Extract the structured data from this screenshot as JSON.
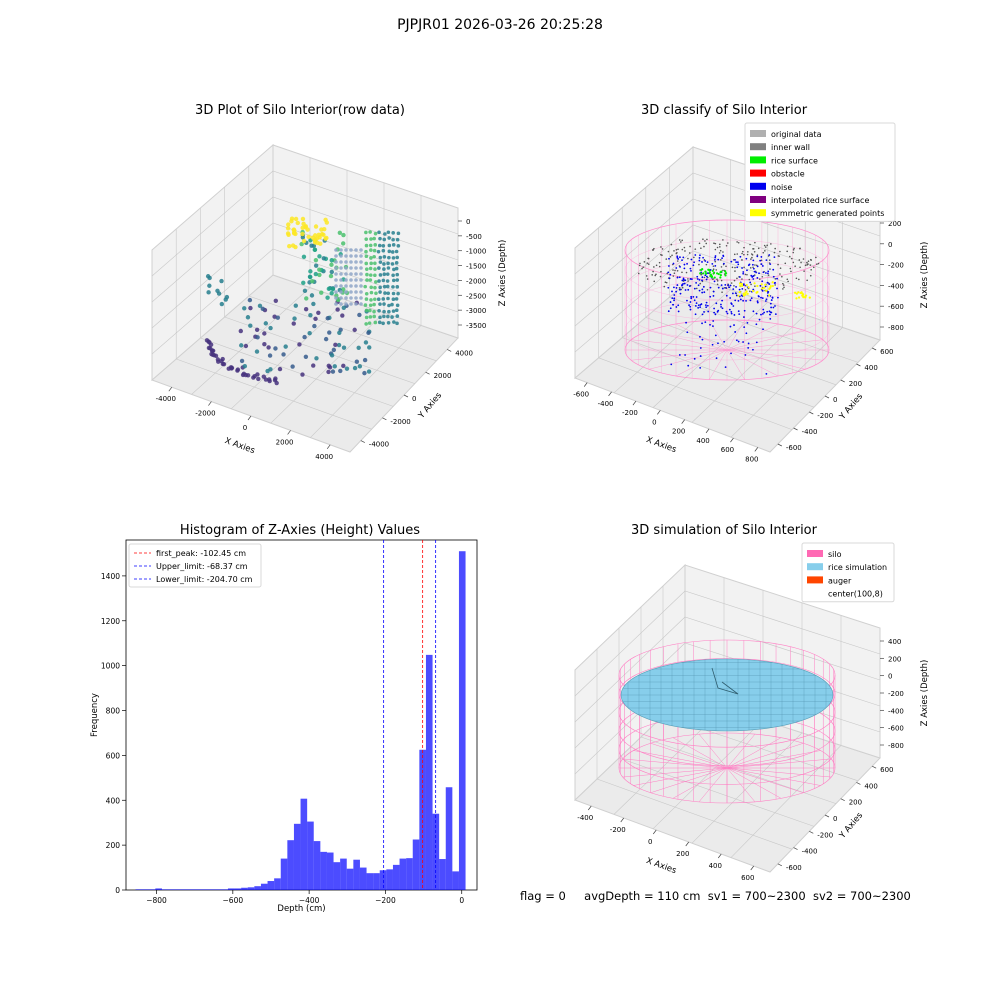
{
  "suptitle": "PJPJR01 2026-03-26 20:25:28",
  "footer": {
    "flag": "flag = 0",
    "avg": "avgDepth = 110 cm",
    "sv1": "sv1 = 700~2300",
    "sv2": "sv2 = 700~2300"
  },
  "chart_data": [
    {
      "type": "scatter",
      "title": "3D Plot of Silo Interior(row data)",
      "xlabel": "X Axies",
      "ylabel": "Y Axies",
      "zlabel": "Z Axies (Depth)",
      "x_ticks": [
        "-4000",
        "-2000",
        "0",
        "2000",
        "4000"
      ],
      "y_ticks": [
        "-4000",
        "-2000",
        "0",
        "2000",
        "4000"
      ],
      "z_ticks": [
        "0",
        "-500",
        "-1000",
        "-1500",
        "-2000",
        "-2500",
        "-3000",
        "-3500"
      ],
      "colormap": "viridis"
    },
    {
      "type": "scatter",
      "title": "3D classify of Silo Interior",
      "xlabel": "X Axies",
      "ylabel": "Y Axies",
      "zlabel": "Z Axies (Depth)",
      "x_ticks": [
        "-600",
        "-400",
        "-200",
        "0",
        "200",
        "400",
        "600",
        "800"
      ],
      "y_ticks": [
        "-600",
        "-400",
        "-200",
        "0",
        "200",
        "400",
        "600"
      ],
      "z_ticks": [
        "200",
        "0",
        "-200",
        "-400",
        "-600",
        "-800"
      ],
      "legend": [
        {
          "label": "original data",
          "color": "#b0b0b0"
        },
        {
          "label": "inner wall",
          "color": "#808080"
        },
        {
          "label": "rice surface",
          "color": "#00ee00"
        },
        {
          "label": "obstacle",
          "color": "#ff0000"
        },
        {
          "label": "noise",
          "color": "#0000ee"
        },
        {
          "label": "interpolated rice surface",
          "color": "#800080"
        },
        {
          "label": "symmetric generated points",
          "color": "#ffff00"
        }
      ],
      "legend_position": "top-right"
    },
    {
      "type": "bar",
      "title": "Histogram of Z-Axies (Height) Values",
      "xlabel": "Depth (cm)",
      "ylabel": "Frequency",
      "xlim": [
        -880,
        40
      ],
      "ylim": [
        0,
        1560
      ],
      "x_ticks": [
        -800,
        -600,
        -400,
        -200,
        0
      ],
      "y_ticks": [
        0,
        200,
        400,
        600,
        800,
        1000,
        1200,
        1400
      ],
      "bin_start": -855,
      "bin_width": 17.3,
      "values": [
        3,
        3,
        3,
        7,
        3,
        3,
        3,
        3,
        3,
        3,
        3,
        3,
        3,
        3,
        7,
        7,
        10,
        12,
        17,
        28,
        40,
        52,
        140,
        222,
        295,
        407,
        305,
        218,
        170,
        167,
        124,
        140,
        95,
        135,
        100,
        75,
        75,
        88,
        92,
        112,
        140,
        142,
        225,
        625,
        1048,
        340,
        138,
        458,
        83,
        1510
      ],
      "bar_color": "#0000ff",
      "lines": [
        {
          "label": "first_peak: -102.45 cm",
          "value": -102.45,
          "color": "#ff0000"
        },
        {
          "label": "Upper_limit: -68.37 cm",
          "value": -68.37,
          "color": "#0000ff"
        },
        {
          "label": "Lower_limit: -204.70 cm",
          "value": -204.7,
          "color": "#0000ff"
        }
      ],
      "legend_position": "top-left"
    },
    {
      "type": "area",
      "title": "3D simulation of Silo Interior",
      "xlabel": "X Axies",
      "ylabel": "Y Axies",
      "zlabel": "Z Axies (Depth)",
      "x_ticks": [
        "-400",
        "-200",
        "0",
        "200",
        "400",
        "600"
      ],
      "y_ticks": [
        "-600",
        "-400",
        "-200",
        "0",
        "200",
        "400",
        "600"
      ],
      "z_ticks": [
        "400",
        "200",
        "0",
        "-200",
        "-400",
        "-600",
        "-800"
      ],
      "legend": [
        {
          "label": "silo",
          "color": "#ff69b4"
        },
        {
          "label": "rice simulation",
          "color": "#87ceeb"
        },
        {
          "label": "auger",
          "color": "#ff4500"
        },
        {
          "label": "center(100,8)",
          "color": ""
        }
      ],
      "legend_position": "top-right"
    }
  ]
}
